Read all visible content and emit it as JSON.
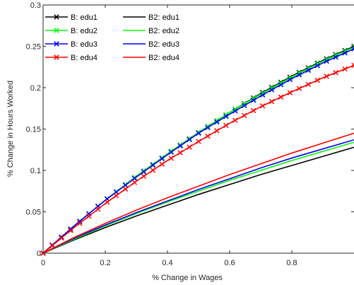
{
  "chart_data": {
    "type": "line",
    "title": "",
    "xlabel": "% Change in Wages",
    "ylabel": "% Change in Hours Worked",
    "xlim": [
      0,
      1
    ],
    "ylim": [
      0,
      0.3
    ],
    "grid": false,
    "legend_position": "top-left",
    "x_ticks": [
      0,
      0.2,
      0.4,
      0.6,
      0.8
    ],
    "x_tick_labels": [
      "0",
      "0.2",
      "0.4",
      "0.6",
      "0.8"
    ],
    "y_ticks": [
      0,
      0.05,
      0.1,
      0.15,
      0.2,
      0.25,
      0.3
    ],
    "y_tick_labels": [
      "0",
      "0.05",
      "0.1",
      "0.15",
      "0.2",
      "0.25",
      "0.3"
    ],
    "x": [
      0,
      0.1,
      0.2,
      0.3,
      0.4,
      0.5,
      0.6,
      0.7,
      0.8,
      0.9,
      1.0
    ],
    "series": [
      {
        "name": "B: edu1",
        "color": "#000000",
        "marker": "x",
        "values": [
          0,
          0.033,
          0.064,
          0.093,
          0.12,
          0.146,
          0.17,
          0.193,
          0.214,
          0.233,
          0.25
        ]
      },
      {
        "name": "B: edu2",
        "color": "#00ff00",
        "marker": "x",
        "values": [
          0,
          0.033,
          0.064,
          0.093,
          0.12,
          0.146,
          0.17,
          0.192,
          0.213,
          0.232,
          0.249
        ]
      },
      {
        "name": "B: edu3",
        "color": "#0000ff",
        "marker": "x",
        "values": [
          0,
          0.033,
          0.064,
          0.092,
          0.119,
          0.145,
          0.168,
          0.19,
          0.211,
          0.23,
          0.247
        ]
      },
      {
        "name": "B: edu4",
        "color": "#ff0000",
        "marker": "x",
        "values": [
          0,
          0.031,
          0.06,
          0.087,
          0.112,
          0.135,
          0.157,
          0.177,
          0.195,
          0.212,
          0.227
        ]
      },
      {
        "name": "B2: edu1",
        "color": "#000000",
        "marker": "none",
        "values": [
          0,
          0.016,
          0.031,
          0.045,
          0.058,
          0.071,
          0.083,
          0.095,
          0.106,
          0.117,
          0.128
        ]
      },
      {
        "name": "B2: edu2",
        "color": "#00ff00",
        "marker": "none",
        "values": [
          0,
          0.017,
          0.033,
          0.048,
          0.062,
          0.075,
          0.088,
          0.1,
          0.112,
          0.123,
          0.134
        ]
      },
      {
        "name": "B2: edu3",
        "color": "#0000ff",
        "marker": "none",
        "values": [
          0,
          0.018,
          0.034,
          0.049,
          0.063,
          0.077,
          0.09,
          0.103,
          0.115,
          0.126,
          0.137
        ]
      },
      {
        "name": "B2: edu4",
        "color": "#ff0000",
        "marker": "none",
        "values": [
          0,
          0.019,
          0.036,
          0.052,
          0.067,
          0.081,
          0.095,
          0.108,
          0.121,
          0.133,
          0.145
        ]
      }
    ]
  }
}
